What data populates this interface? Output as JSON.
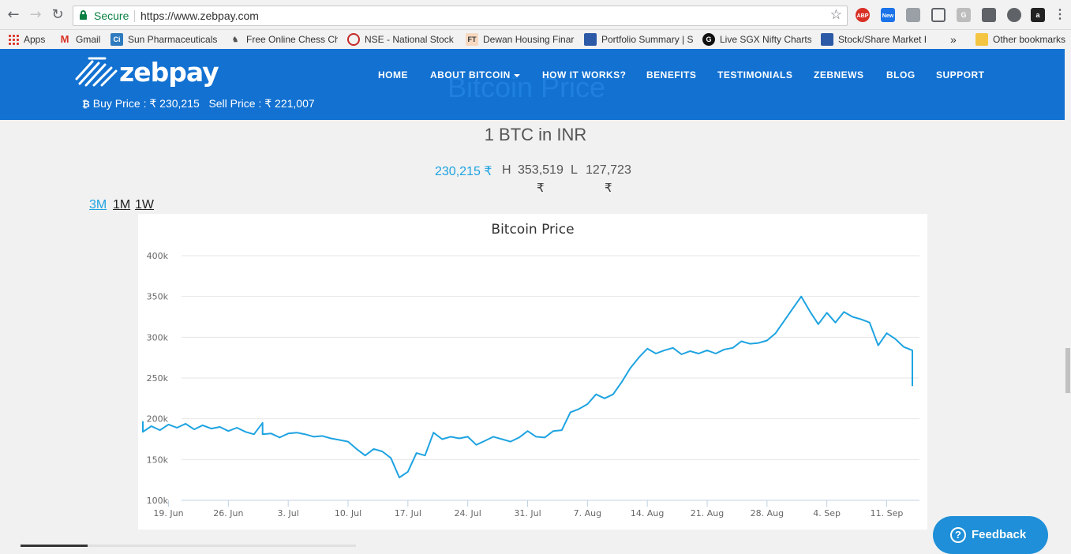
{
  "browser": {
    "secure_label": "Secure",
    "url": "https://www.zebpay.com",
    "bookmarks": [
      {
        "label": "Apps"
      },
      {
        "label": "Gmail"
      },
      {
        "label": "Sun Pharmaceuticals"
      },
      {
        "label": "Free Online Chess Ch"
      },
      {
        "label": "NSE - National Stock"
      },
      {
        "label": "Dewan Housing Finar"
      },
      {
        "label": "Portfolio Summary | S"
      },
      {
        "label": "Live SGX Nifty Charts"
      },
      {
        "label": "Stock/Share Market I"
      }
    ],
    "overflow_label": "»",
    "other_bookmarks": "Other bookmarks",
    "extensions": [
      "ABP",
      "New",
      "G",
      "a"
    ]
  },
  "header": {
    "logo_text": "zebpay",
    "nav": [
      {
        "label": "HOME"
      },
      {
        "label": "ABOUT BITCOIN"
      },
      {
        "label": "HOW IT WORKS?"
      },
      {
        "label": "BENEFITS"
      },
      {
        "label": "TESTIMONIALS"
      },
      {
        "label": "ZEBNEWS"
      },
      {
        "label": "BLOG"
      },
      {
        "label": "SUPPORT"
      }
    ],
    "buy_price": "Buy Price : ₹ 230,215",
    "sell_price": "Sell Price : ₹ 221,007",
    "ghost_title": "Bitcoin Price",
    "colors": {
      "header_bg": "#1271d1",
      "accent": "#1ea3e1"
    }
  },
  "main": {
    "heading": "1 BTC in INR",
    "current_price": "230,215 ₹",
    "high_label": "H",
    "high_value": "353,519",
    "low_label": "L",
    "low_value": "127,723",
    "rupee": "₹",
    "ranges": [
      "3M",
      "1M",
      "1W"
    ],
    "active_range": "3M"
  },
  "chart_data": {
    "type": "line",
    "title": "Bitcoin Price",
    "xlabel": "",
    "ylabel": "",
    "ylim": [
      100000,
      400000
    ],
    "y_ticks": [
      "100k",
      "150k",
      "200k",
      "250k",
      "300k",
      "350k",
      "400k"
    ],
    "y_tick_values": [
      100000,
      150000,
      200000,
      250000,
      300000,
      350000,
      400000
    ],
    "x_ticks": [
      "19. Jun",
      "26. Jun",
      "3. Jul",
      "10. Jul",
      "17. Jul",
      "24. Jul",
      "31. Jul",
      "7. Aug",
      "14. Aug",
      "21. Aug",
      "28. Aug",
      "4. Sep",
      "11. Sep"
    ],
    "grid": true,
    "line_color": "#1ea3e1",
    "series": [
      {
        "values": [
          {
            "x": "2017-06-16",
            "y": 197000
          },
          {
            "x": "2017-06-16",
            "y": 184000
          },
          {
            "x": "2017-06-17",
            "y": 191000
          },
          {
            "x": "2017-06-18",
            "y": 186000
          },
          {
            "x": "2017-06-19",
            "y": 193000
          },
          {
            "x": "2017-06-20",
            "y": 189000
          },
          {
            "x": "2017-06-21",
            "y": 194000
          },
          {
            "x": "2017-06-22",
            "y": 187000
          },
          {
            "x": "2017-06-23",
            "y": 192000
          },
          {
            "x": "2017-06-24",
            "y": 188000
          },
          {
            "x": "2017-06-25",
            "y": 190000
          },
          {
            "x": "2017-06-26",
            "y": 185000
          },
          {
            "x": "2017-06-27",
            "y": 189000
          },
          {
            "x": "2017-06-28",
            "y": 184000
          },
          {
            "x": "2017-06-29",
            "y": 181000
          },
          {
            "x": "2017-06-30",
            "y": 195000
          },
          {
            "x": "2017-06-30",
            "y": 181000
          },
          {
            "x": "2017-07-01",
            "y": 182000
          },
          {
            "x": "2017-07-02",
            "y": 177000
          },
          {
            "x": "2017-07-03",
            "y": 182000
          },
          {
            "x": "2017-07-04",
            "y": 183000
          },
          {
            "x": "2017-07-05",
            "y": 181000
          },
          {
            "x": "2017-07-06",
            "y": 178000
          },
          {
            "x": "2017-07-07",
            "y": 179000
          },
          {
            "x": "2017-07-08",
            "y": 176000
          },
          {
            "x": "2017-07-09",
            "y": 174000
          },
          {
            "x": "2017-07-10",
            "y": 172000
          },
          {
            "x": "2017-07-11",
            "y": 163000
          },
          {
            "x": "2017-07-12",
            "y": 155000
          },
          {
            "x": "2017-07-13",
            "y": 163000
          },
          {
            "x": "2017-07-14",
            "y": 160000
          },
          {
            "x": "2017-07-15",
            "y": 152000
          },
          {
            "x": "2017-07-16",
            "y": 128000
          },
          {
            "x": "2017-07-17",
            "y": 135000
          },
          {
            "x": "2017-07-18",
            "y": 158000
          },
          {
            "x": "2017-07-19",
            "y": 155000
          },
          {
            "x": "2017-07-20",
            "y": 183000
          },
          {
            "x": "2017-07-21",
            "y": 175000
          },
          {
            "x": "2017-07-22",
            "y": 178000
          },
          {
            "x": "2017-07-23",
            "y": 176000
          },
          {
            "x": "2017-07-24",
            "y": 178000
          },
          {
            "x": "2017-07-25",
            "y": 168000
          },
          {
            "x": "2017-07-26",
            "y": 173000
          },
          {
            "x": "2017-07-27",
            "y": 178000
          },
          {
            "x": "2017-07-28",
            "y": 175000
          },
          {
            "x": "2017-07-29",
            "y": 172000
          },
          {
            "x": "2017-07-30",
            "y": 177000
          },
          {
            "x": "2017-07-31",
            "y": 185000
          },
          {
            "x": "2017-08-01",
            "y": 178000
          },
          {
            "x": "2017-08-02",
            "y": 177000
          },
          {
            "x": "2017-08-03",
            "y": 185000
          },
          {
            "x": "2017-08-04",
            "y": 186000
          },
          {
            "x": "2017-08-05",
            "y": 208000
          },
          {
            "x": "2017-08-06",
            "y": 212000
          },
          {
            "x": "2017-08-07",
            "y": 218000
          },
          {
            "x": "2017-08-08",
            "y": 230000
          },
          {
            "x": "2017-08-09",
            "y": 225000
          },
          {
            "x": "2017-08-10",
            "y": 230000
          },
          {
            "x": "2017-08-11",
            "y": 245000
          },
          {
            "x": "2017-08-12",
            "y": 262000
          },
          {
            "x": "2017-08-13",
            "y": 275000
          },
          {
            "x": "2017-08-14",
            "y": 286000
          },
          {
            "x": "2017-08-15",
            "y": 280000
          },
          {
            "x": "2017-08-16",
            "y": 284000
          },
          {
            "x": "2017-08-17",
            "y": 287000
          },
          {
            "x": "2017-08-18",
            "y": 279000
          },
          {
            "x": "2017-08-19",
            "y": 283000
          },
          {
            "x": "2017-08-20",
            "y": 280000
          },
          {
            "x": "2017-08-21",
            "y": 284000
          },
          {
            "x": "2017-08-22",
            "y": 280000
          },
          {
            "x": "2017-08-23",
            "y": 285000
          },
          {
            "x": "2017-08-24",
            "y": 287000
          },
          {
            "x": "2017-08-25",
            "y": 295000
          },
          {
            "x": "2017-08-26",
            "y": 292000
          },
          {
            "x": "2017-08-27",
            "y": 293000
          },
          {
            "x": "2017-08-28",
            "y": 296000
          },
          {
            "x": "2017-08-29",
            "y": 305000
          },
          {
            "x": "2017-08-30",
            "y": 320000
          },
          {
            "x": "2017-08-31",
            "y": 335000
          },
          {
            "x": "2017-09-01",
            "y": 350000
          },
          {
            "x": "2017-09-02",
            "y": 332000
          },
          {
            "x": "2017-09-03",
            "y": 316000
          },
          {
            "x": "2017-09-04",
            "y": 330000
          },
          {
            "x": "2017-09-05",
            "y": 318000
          },
          {
            "x": "2017-09-06",
            "y": 331000
          },
          {
            "x": "2017-09-07",
            "y": 325000
          },
          {
            "x": "2017-09-08",
            "y": 322000
          },
          {
            "x": "2017-09-09",
            "y": 318000
          },
          {
            "x": "2017-09-10",
            "y": 290000
          },
          {
            "x": "2017-09-11",
            "y": 305000
          },
          {
            "x": "2017-09-12",
            "y": 298000
          },
          {
            "x": "2017-09-13",
            "y": 288000
          },
          {
            "x": "2017-09-14",
            "y": 284000
          },
          {
            "x": "2017-09-14",
            "y": 240000
          }
        ]
      }
    ]
  },
  "feedback": {
    "label": "Feedback",
    "icon": "?"
  }
}
